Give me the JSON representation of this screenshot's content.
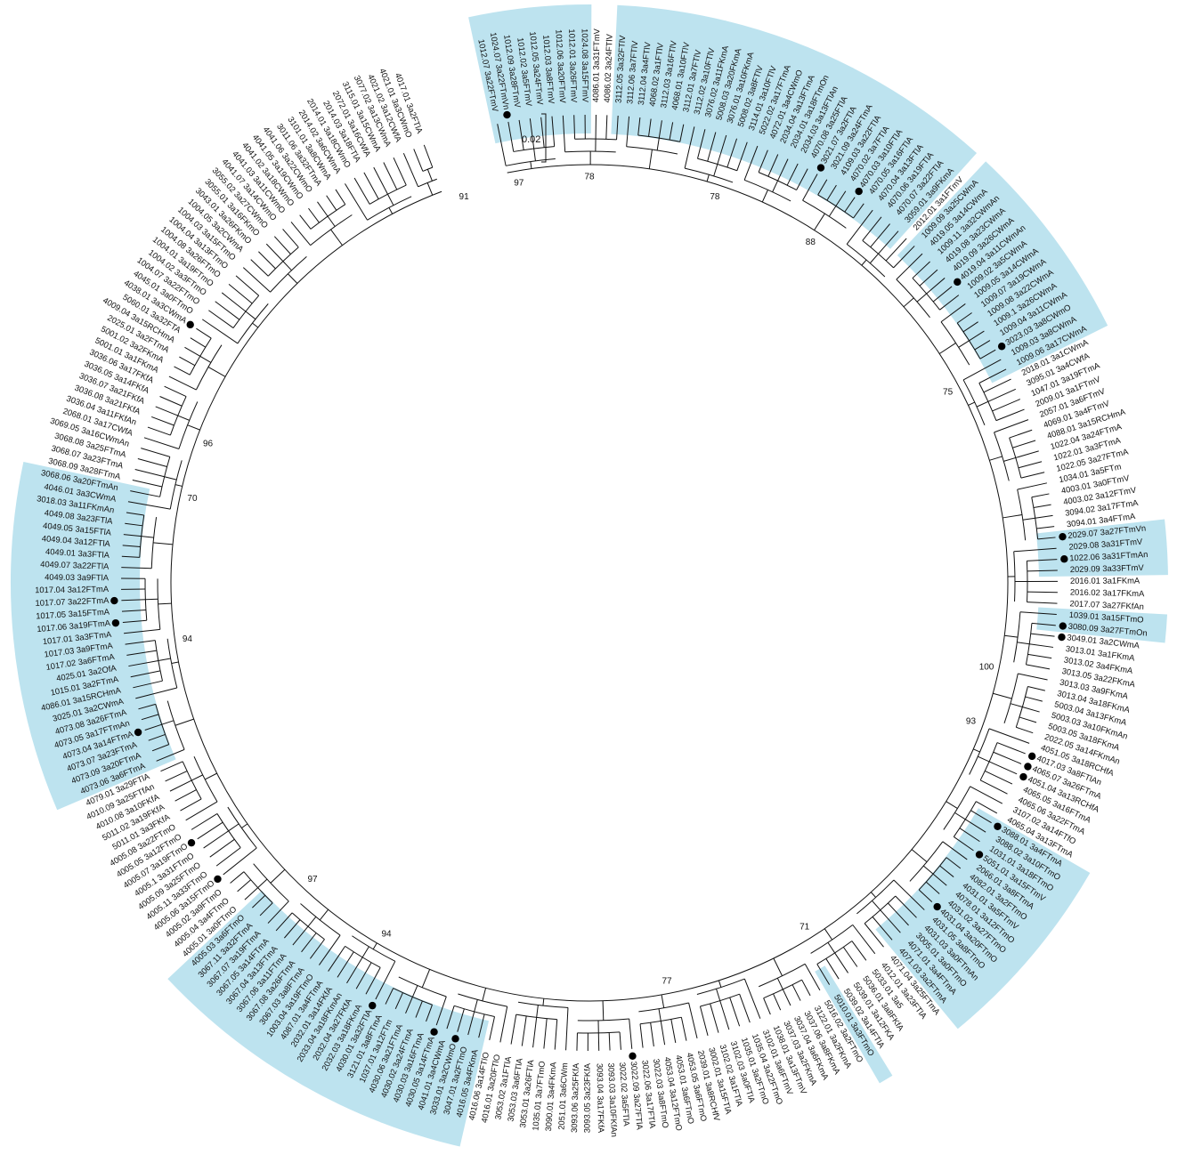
{
  "scale_bar": {
    "label": "0.02"
  },
  "highlight_color": "#bde3ef",
  "line_color": "#111111",
  "leaves": [
    "1012.07 3a22FTmV",
    "1024.07 3a22FTmVn",
    "1012.09 3a28FTmV",
    "1012.02 3a5FTmV",
    "1012.05 3a24FTmV",
    "1012.03 3a8FTmV",
    "1012.06 3a20FTmV",
    "1012.01 3a26FTmV",
    "1024.08 3a15FTmV",
    "4086.01 3a31FTmV",
    "4086.02 3a24FTlV",
    "3112.05 3a32FTlV",
    "3112.06 3a7FTlV",
    "3112.04 3a4FTlV",
    "4068.02 3a1FTlV",
    "3112.03 3a16FTlV",
    "4068.01 3a10FTlV",
    "3112.01 3a7FTlV",
    "3112.02 3a10FTlV",
    "3076.02 3a11FKmA",
    "5008.03 3a20FKmA",
    "3076.01 3a10FKmA",
    "5008.02 3a8FTlV",
    "3114.01 3a10FTlV",
    "5022.02 3a17FTmA",
    "4072.01 3a4CWmO",
    "2034.04 3a13FTmA",
    "2034.01 3a18FTmOn",
    "2034.03 3a13FTlAn",
    "4070.08 3a25FTlA",
    "3021.07 3a2FTlA",
    "3021.09 3a24FTmA",
    "4109.03 3a22FTlA",
    "4070.02 3a7FTlA",
    "4070.03 3a10FTlA",
    "4070.05 3a16FTlA",
    "4070.04 3a13FTlA",
    "4070.06 3a19FTlA",
    "4070.07 3a22FTlA",
    "3059.01 3a9FKmA",
    "2012.01 3a1FTmV",
    "1009.09 3a25CWmA",
    "4019.05 3a14CWmA",
    "1009.11 3a32CWmAn",
    "4019.08 3a23CWmA",
    "4019.09 3a26CWmA",
    "4019.04 3a11CWmAn",
    "1009.02 3a5CWmA",
    "1009.05 3a14CWmA",
    "1009.07 3a19CWmA",
    "1009.08 3a22CWmA",
    "1009.1 3a26CWmA",
    "1009.04 3a11CWmA",
    "3023.03 3a8CWmO",
    "1009.03 3a8CWmA",
    "1009.06 3a17CWmA",
    "2018.01 3a1CWmA",
    "3095.01 3a4CWfA",
    "1047.01 3a19FTmA",
    "2009.01 3a1FTmV",
    "2057.01 3a6FTmV",
    "4069.01 3a4FTmV",
    "4088.01 3a15RCHmA",
    "1022.04 3a24FTmA",
    "1022.01 3a3FTmA",
    "1022.05 3a27FTmA",
    "1034.01 3a5FTm",
    "4003.01 3a0FTmV",
    "4003.02 3a12FTmV",
    "3094.02 3a17FTmA",
    "3094.01 3a4FTmA",
    "2029.07 3a27FTmVn",
    "2029.08 3a31FTmV",
    "1022.06 3a31FTmAn",
    "2029.09 3a33FTmV",
    "2016.01 3a1FKmA",
    "2016.02 3a17FKmA",
    "2017.07 3a27FKfAn",
    "1039.01 3a15FTmO",
    "3080.09 3a27FTmOn",
    "3049.01 3a2CWmA",
    "3013.01 3a1FKmA",
    "3013.02 3a4FKmA",
    "3013.05 3a22FKmA",
    "3013.03 3a9FKmA",
    "3013.04 3a18FKmA",
    "5003.04 3a13FKmA",
    "5003.03 3a10FKmAn",
    "5003.05 3a18FKmA",
    "2022.05 3a14FKmAn",
    "4051.05 3a18RCHfA",
    "4017.03 3a8FTlAn",
    "4065.07 3a26FTmA",
    "4051.04 3a13RCHfA",
    "4065.05 3a16FTmA",
    "4065.06 3a22FTmA",
    "3107.02 3a14FTfO",
    "4065.04 3a13FTmA",
    "3088.01 3a4FTmA",
    "3088.02 3a10FTmO",
    "1031.01 3a18FTmO",
    "5051.01 3a15FTmV",
    "2066.01 3a8FTmA",
    "4082.01 3a2FTmO",
    "4031.01 3a5FTmV",
    "4078.01 3a12FTmO",
    "4031.02 3a27FTmO",
    "4031.04 3a20FTmO",
    "4031.05 3a8FTmO",
    "4031.03 3a0FTmAn",
    "3005.01 3a0FTmO",
    "4071.01 3a4FTmA",
    "4071.03 3a2FTmA",
    "4071.04 3a25FTmA",
    "4012.01 3a23FTlA",
    "5033.01 3a5",
    "5036.01 3a8FKfA",
    "5039.01 3a12FKA",
    "5039.02 3a14FTlA",
    "5010.01 3a3FTmO",
    "5016.02 3a2FTmO",
    "3122.01 3a2FKmA",
    "3037.06 3a8FKmA",
    "3037.04 3a6FKmA",
    "3037.03 3a2FKmA",
    "1038.01 3a13FTmV",
    "3102.01 3a6FTmV",
    "1035.04 3a22FTmO",
    "1035.01 3a2FTmO",
    "3102.03 3a0FTlA",
    "3102.02 3a1FTlA",
    "3002.01 3a15FTlA",
    "2039.01 3a8RCHfV",
    "4053.05 3a6FTmO",
    "4053.01 3a6FTmO",
    "4053.04 3a12FTmO",
    "3022.03 3a8FTmO",
    "3022.06 3a17FTlA",
    "3022.09 3a27FTlA",
    "3022.02 3a5FTlA",
    "3093.03 3a10FKfAn",
    "3093.04 3a17FKfA",
    "3093.05 3a23FKfA",
    "3093.06 3a25FKfA",
    "2051.01 3a6CWm",
    "3090.01 3a4FKmA",
    "1035.01 3a7FTmO",
    "3053.01 3a26FTlA",
    "3053.03 3a6FTlA",
    "3053.02 3a1FTlA",
    "4016.01 3a20FTlO",
    "4016.06 3a14FTlO",
    "4016.05 3a4FKmA",
    "3047.01 3a2FTmO",
    "3033.01 3a2CWmO",
    "4041.01 3a4CWmA",
    "4030.05 3a14FTmA",
    "4030.03 3a16FTmA",
    "4030.02 3a24FTmA",
    "4030.06 3a21FTmA",
    "1037.01 3a12FTm",
    "3121.01 3a8FTmA",
    "4030.01 3a32FTlA",
    "2032.03 3a18FKmA",
    "2032.04 3a27FKfA",
    "2033.04 3a18FKmAn",
    "2032.01 3a14FKfA",
    "4087.01 3a4FTmA",
    "1003.04 3a19FTmO",
    "3067.03 3a8FTmA",
    "3067.08 3a26FTmA",
    "3067.06 3a11FTmA",
    "3067.04 3a13FTmA",
    "3067.05 3a14FTmA",
    "3067.07 3a19FTmA",
    "3067.11 3a32FTmA",
    "4005.03 3a6FTmO",
    "4005.01 3a0FTmO",
    "4005.04 3a4FTmO",
    "4005.02 3a9FTmO",
    "4005.06 3a15FTmO",
    "4005.11 3a33FTmO",
    "4005.09 3a25FTmO",
    "4005.1 3a31FTmO",
    "4005.07 3a19FTmO",
    "4005.05 3a12FTmO",
    "4005.08 3a22FTmO",
    "5011.01 3a3FKfA",
    "5011.02 3a19FKfA",
    "4010.08 3a10FKfA",
    "4010.09 3a25FTfAn",
    "4079.01 3a29FTlA",
    "4073.06 3a6FTmA",
    "4073.09 3a20FTmA",
    "4073.07 3a23FTmA",
    "4073.04 3a14FTmA",
    "4073.05 3a17FTmAn",
    "4073.08 3a26FTmA",
    "3025.01 3a2CWmA",
    "4086.01 3a15RCHmA",
    "1015.01 3a2FTmA",
    "4025.01 3a2OfA",
    "1017.02 3a6FTmA",
    "1017.03 3a9FTmA",
    "1017.01 3a3FTmA",
    "1017.06 3a19FTmA",
    "1017.05 3a15FTmA",
    "1017.07 3a22FTmA",
    "1017.04 3a12FTmA",
    "4049.03 3a9FTlA",
    "4049.07 3a22FTlA",
    "4049.01 3a3FTlA",
    "4049.04 3a12FTlA",
    "4049.05 3a15FTlA",
    "4049.08 3a23FTlA",
    "3018.03 3a11FKmAn",
    "4046.01 3a3CWmA",
    "3068.06 3a20FTmAn",
    "3068.09 3a28FTmA",
    "3068.07 3a23FTmA",
    "3068.08 3a25FTmA",
    "3069.05 3a16CWmAn",
    "2068.01 3a17CWfA",
    "3036.04 3a11FKfAn",
    "3036.08 3a21FKfA",
    "3036.07 3a21FKfA",
    "3036.05 3a14FKfA",
    "3036.06 3a17FKfA",
    "5001.01 3a1FKmA",
    "5001.02 3a2FKmA",
    "2025.01 3a2FTmA",
    "4009.04 3a15RCHmA",
    "5060.01 3a32FTA",
    "4038.01 3a3CWmA",
    "4045.01 3a0FTmO",
    "1004.07 3a22FTmO",
    "1004.02 3a3FTmO",
    "1004.01 3a19FTmO",
    "1004.08 3a26FTmO",
    "1004.04 3a13FTmO",
    "1004.03 3a15FTmO",
    "1004.05 3a2CWmA",
    "3043.01 3a26FKmO",
    "3055.01 3a16FKmO",
    "3055.02 3a27CWmO",
    "4041.07 3a14CWmO",
    "4041.03 3a11CWmO",
    "4041.02 3a18CWmO",
    "4041.05 3a19CWmO",
    "4041.06 3a22CWmO",
    "3011.06 3a32FTmA",
    "3101.01 3a8CWmA",
    "2014.02 3a6CWmA",
    "2014.01 3a18CWmO",
    "2014.03 3a18FTlA",
    "2072.01 3a16CWfA",
    "3115.01 3a15CWmA",
    "3077.02 3a13CWmA",
    "4021.02 3a12CWfA",
    "4021.01 3a3CWmO",
    "4017.01 3a2FTlA"
  ],
  "clade_ranges": [
    [
      0,
      8
    ],
    [
      11,
      18
    ],
    [
      19,
      28
    ],
    [
      29,
      39
    ],
    [
      41,
      55
    ],
    [
      71,
      74
    ],
    [
      78,
      79
    ],
    [
      98,
      112
    ],
    [
      119,
      119
    ],
    [
      152,
      157
    ],
    [
      158,
      176
    ],
    [
      192,
      204
    ],
    [
      205,
      217
    ]
  ],
  "dotted_leaves": [
    1,
    30,
    34,
    46,
    53,
    71,
    73,
    79,
    80,
    91,
    92,
    93,
    98,
    101,
    107,
    138,
    154,
    156,
    162,
    180,
    184,
    195,
    205,
    207,
    233
  ],
  "bootstrap": [
    {
      "value": "97",
      "angle": -10
    },
    {
      "value": "78",
      "angle": 0
    },
    {
      "value": "78",
      "angle": 18
    },
    {
      "value": "88",
      "angle": 33
    },
    {
      "value": "75",
      "angle": 62
    },
    {
      "value": "100",
      "angle": 102
    },
    {
      "value": "93",
      "angle": 110
    },
    {
      "value": "71",
      "angle": 148
    },
    {
      "value": "77",
      "angle": 169
    },
    {
      "value": "94",
      "angle": 210
    },
    {
      "value": "97",
      "angle": 223
    },
    {
      "value": "94",
      "angle": 262
    },
    {
      "value": "70",
      "angle": 282
    },
    {
      "value": "96",
      "angle": 290
    },
    {
      "value": "91",
      "angle": 342
    }
  ]
}
